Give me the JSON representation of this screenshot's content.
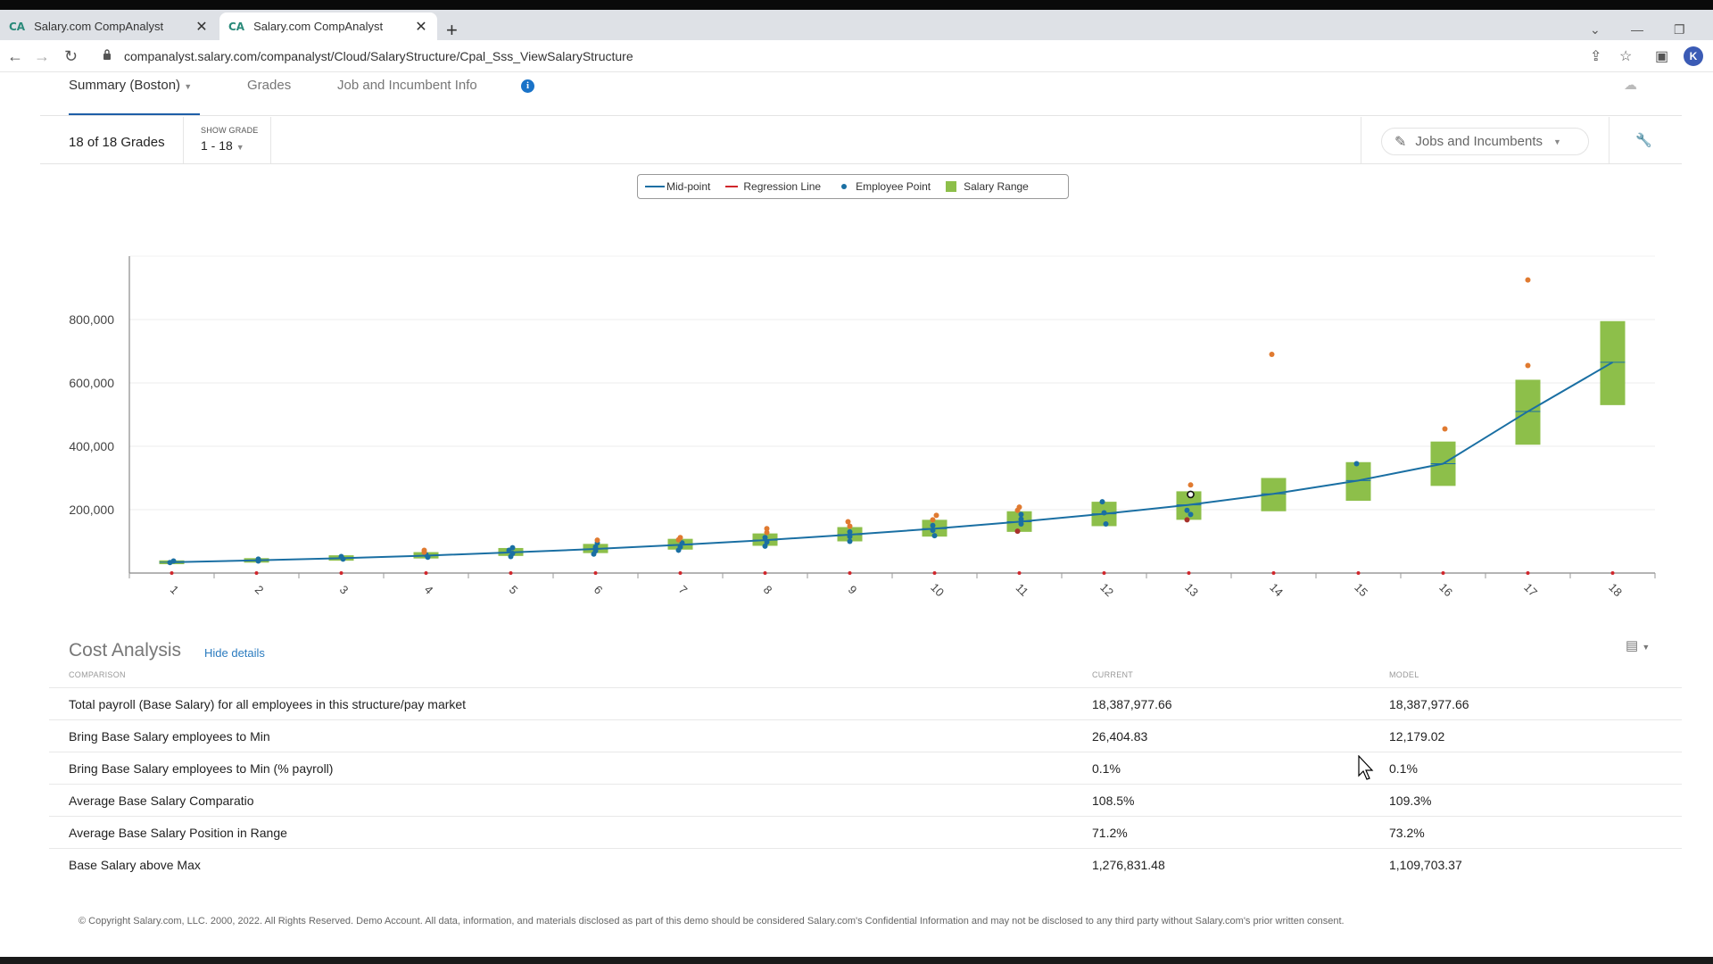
{
  "browser": {
    "tabs": [
      {
        "favicon": "CA",
        "title": "Salary.com CompAnalyst",
        "close": "✕"
      },
      {
        "favicon": "CA",
        "title": "Salary.com CompAnalyst",
        "close": "✕"
      }
    ],
    "new_tab": "+",
    "url": "companalyst.salary.com/companalyst/Cloud/SalaryStructure/Cpal_Sss_ViewSalaryStructure",
    "avatar_letter": "K"
  },
  "app_tabs": {
    "summary": "Summary (Boston)",
    "grades": "Grades",
    "job_info": "Job and Incumbent Info",
    "info_glyph": "i"
  },
  "filter": {
    "grade_count": "18 of 18 Grades",
    "show_grade_label": "SHOW GRADE",
    "show_grade_value": "1 - 18",
    "jobs_button": "Jobs and Incumbents"
  },
  "legend": {
    "midpoint": "Mid-point",
    "regression": "Regression Line",
    "employee": "Employee Point",
    "range": "Salary Range"
  },
  "colors": {
    "midpoint": "#1a6fa3",
    "regression": "#d0262b",
    "employee": "#1a6fa3",
    "employee_alt": "#e07a30",
    "range": "#8dbf4a",
    "accent": "#1f5fa8"
  },
  "chart_data": {
    "type": "box",
    "categories": [
      "1",
      "2",
      "3",
      "4",
      "5",
      "6",
      "7",
      "8",
      "9",
      "10",
      "11",
      "12",
      "13",
      "14",
      "15",
      "16",
      "17",
      "18"
    ],
    "ylim": [
      0,
      1000000
    ],
    "y_ticks": [
      200000,
      400000,
      600000,
      800000
    ],
    "y_tick_labels": [
      "200,000",
      "400,000",
      "600,000",
      "800,000"
    ],
    "grid": true,
    "series": [
      {
        "name": "Mid-point",
        "type": "line",
        "values": [
          34000,
          40000,
          47000,
          55000,
          65000,
          76000,
          89000,
          104000,
          121000,
          140000,
          162000,
          187000,
          215000,
          250000,
          292000,
          345000,
          510000,
          665000
        ]
      },
      {
        "name": "Regression Line",
        "type": "line",
        "values": [
          0,
          0,
          0,
          0,
          0,
          0,
          0,
          0,
          0,
          0,
          0,
          0,
          0,
          0,
          0,
          0,
          0,
          0
        ]
      },
      {
        "name": "Salary Range",
        "type": "range",
        "min": [
          28000,
          33000,
          39000,
          46000,
          54000,
          63000,
          74000,
          86000,
          100000,
          115000,
          130000,
          148000,
          168000,
          195000,
          228000,
          275000,
          405000,
          530000
        ],
        "max": [
          40000,
          47000,
          56000,
          66000,
          79000,
          92000,
          108000,
          125000,
          145000,
          168000,
          195000,
          225000,
          258000,
          300000,
          350000,
          415000,
          610000,
          795000
        ]
      },
      {
        "name": "Employee Point",
        "type": "scatter",
        "points": [
          [
            1,
            33000,
            "b"
          ],
          [
            1,
            38000,
            "b"
          ],
          [
            2,
            38000,
            "b"
          ],
          [
            2,
            44000,
            "b"
          ],
          [
            3,
            44000,
            "b"
          ],
          [
            3,
            52000,
            "b"
          ],
          [
            4,
            50000,
            "b"
          ],
          [
            4,
            58000,
            "b"
          ],
          [
            4,
            66000,
            "o"
          ],
          [
            4,
            72000,
            "o"
          ],
          [
            5,
            52000,
            "b"
          ],
          [
            5,
            62000,
            "b"
          ],
          [
            5,
            72000,
            "b"
          ],
          [
            5,
            80000,
            "b"
          ],
          [
            6,
            60000,
            "b"
          ],
          [
            6,
            70000,
            "b"
          ],
          [
            6,
            82000,
            "b"
          ],
          [
            6,
            95000,
            "b"
          ],
          [
            6,
            104000,
            "o"
          ],
          [
            7,
            72000,
            "b"
          ],
          [
            7,
            82000,
            "b"
          ],
          [
            7,
            95000,
            "b"
          ],
          [
            7,
            105000,
            "o"
          ],
          [
            7,
            112000,
            "o"
          ],
          [
            8,
            85000,
            "b"
          ],
          [
            8,
            98000,
            "b"
          ],
          [
            8,
            112000,
            "b"
          ],
          [
            8,
            128000,
            "o"
          ],
          [
            8,
            140000,
            "o"
          ],
          [
            9,
            100000,
            "b"
          ],
          [
            9,
            115000,
            "b"
          ],
          [
            9,
            130000,
            "b"
          ],
          [
            9,
            148000,
            "o"
          ],
          [
            9,
            162000,
            "o"
          ],
          [
            10,
            118000,
            "b"
          ],
          [
            10,
            135000,
            "b"
          ],
          [
            10,
            150000,
            "b"
          ],
          [
            10,
            168000,
            "o"
          ],
          [
            10,
            182000,
            "o"
          ],
          [
            11,
            132000,
            "r"
          ],
          [
            11,
            155000,
            "b"
          ],
          [
            11,
            170000,
            "b"
          ],
          [
            11,
            185000,
            "b"
          ],
          [
            11,
            198000,
            "o"
          ],
          [
            11,
            208000,
            "o"
          ],
          [
            12,
            155000,
            "b"
          ],
          [
            12,
            190000,
            "b"
          ],
          [
            12,
            225000,
            "b"
          ],
          [
            13,
            168000,
            "r"
          ],
          [
            13,
            185000,
            "b"
          ],
          [
            13,
            198000,
            "b"
          ],
          [
            13,
            248000,
            "k"
          ],
          [
            13,
            278000,
            "o"
          ],
          [
            14,
            690000,
            "o"
          ],
          [
            15,
            345000,
            "b"
          ],
          [
            16,
            455000,
            "o"
          ],
          [
            17,
            655000,
            "o"
          ],
          [
            17,
            925000,
            "o"
          ]
        ]
      }
    ]
  },
  "cost_analysis": {
    "title": "Cost Analysis",
    "hide_link": "Hide details",
    "headers": [
      "COMPARISON",
      "CURRENT",
      "MODEL"
    ],
    "rows": [
      [
        "Total payroll (Base Salary) for all employees in this structure/pay market",
        "18,387,977.66",
        "18,387,977.66"
      ],
      [
        "Bring Base Salary employees to Min",
        "26,404.83",
        "12,179.02"
      ],
      [
        "Bring Base Salary employees to Min (% payroll)",
        "0.1%",
        "0.1%"
      ],
      [
        "Average Base Salary Comparatio",
        "108.5%",
        "109.3%"
      ],
      [
        "Average Base Salary Position in Range",
        "71.2%",
        "73.2%"
      ],
      [
        "Base Salary above Max",
        "1,276,831.48",
        "1,109,703.37"
      ]
    ]
  },
  "footer": "© Copyright Salary.com, LLC. 2000, 2022. All Rights Reserved. Demo Account. All data, information, and materials disclosed as part of this demo should be considered Salary.com's Confidential Information and may not be disclosed to any third party without Salary.com's prior written consent."
}
